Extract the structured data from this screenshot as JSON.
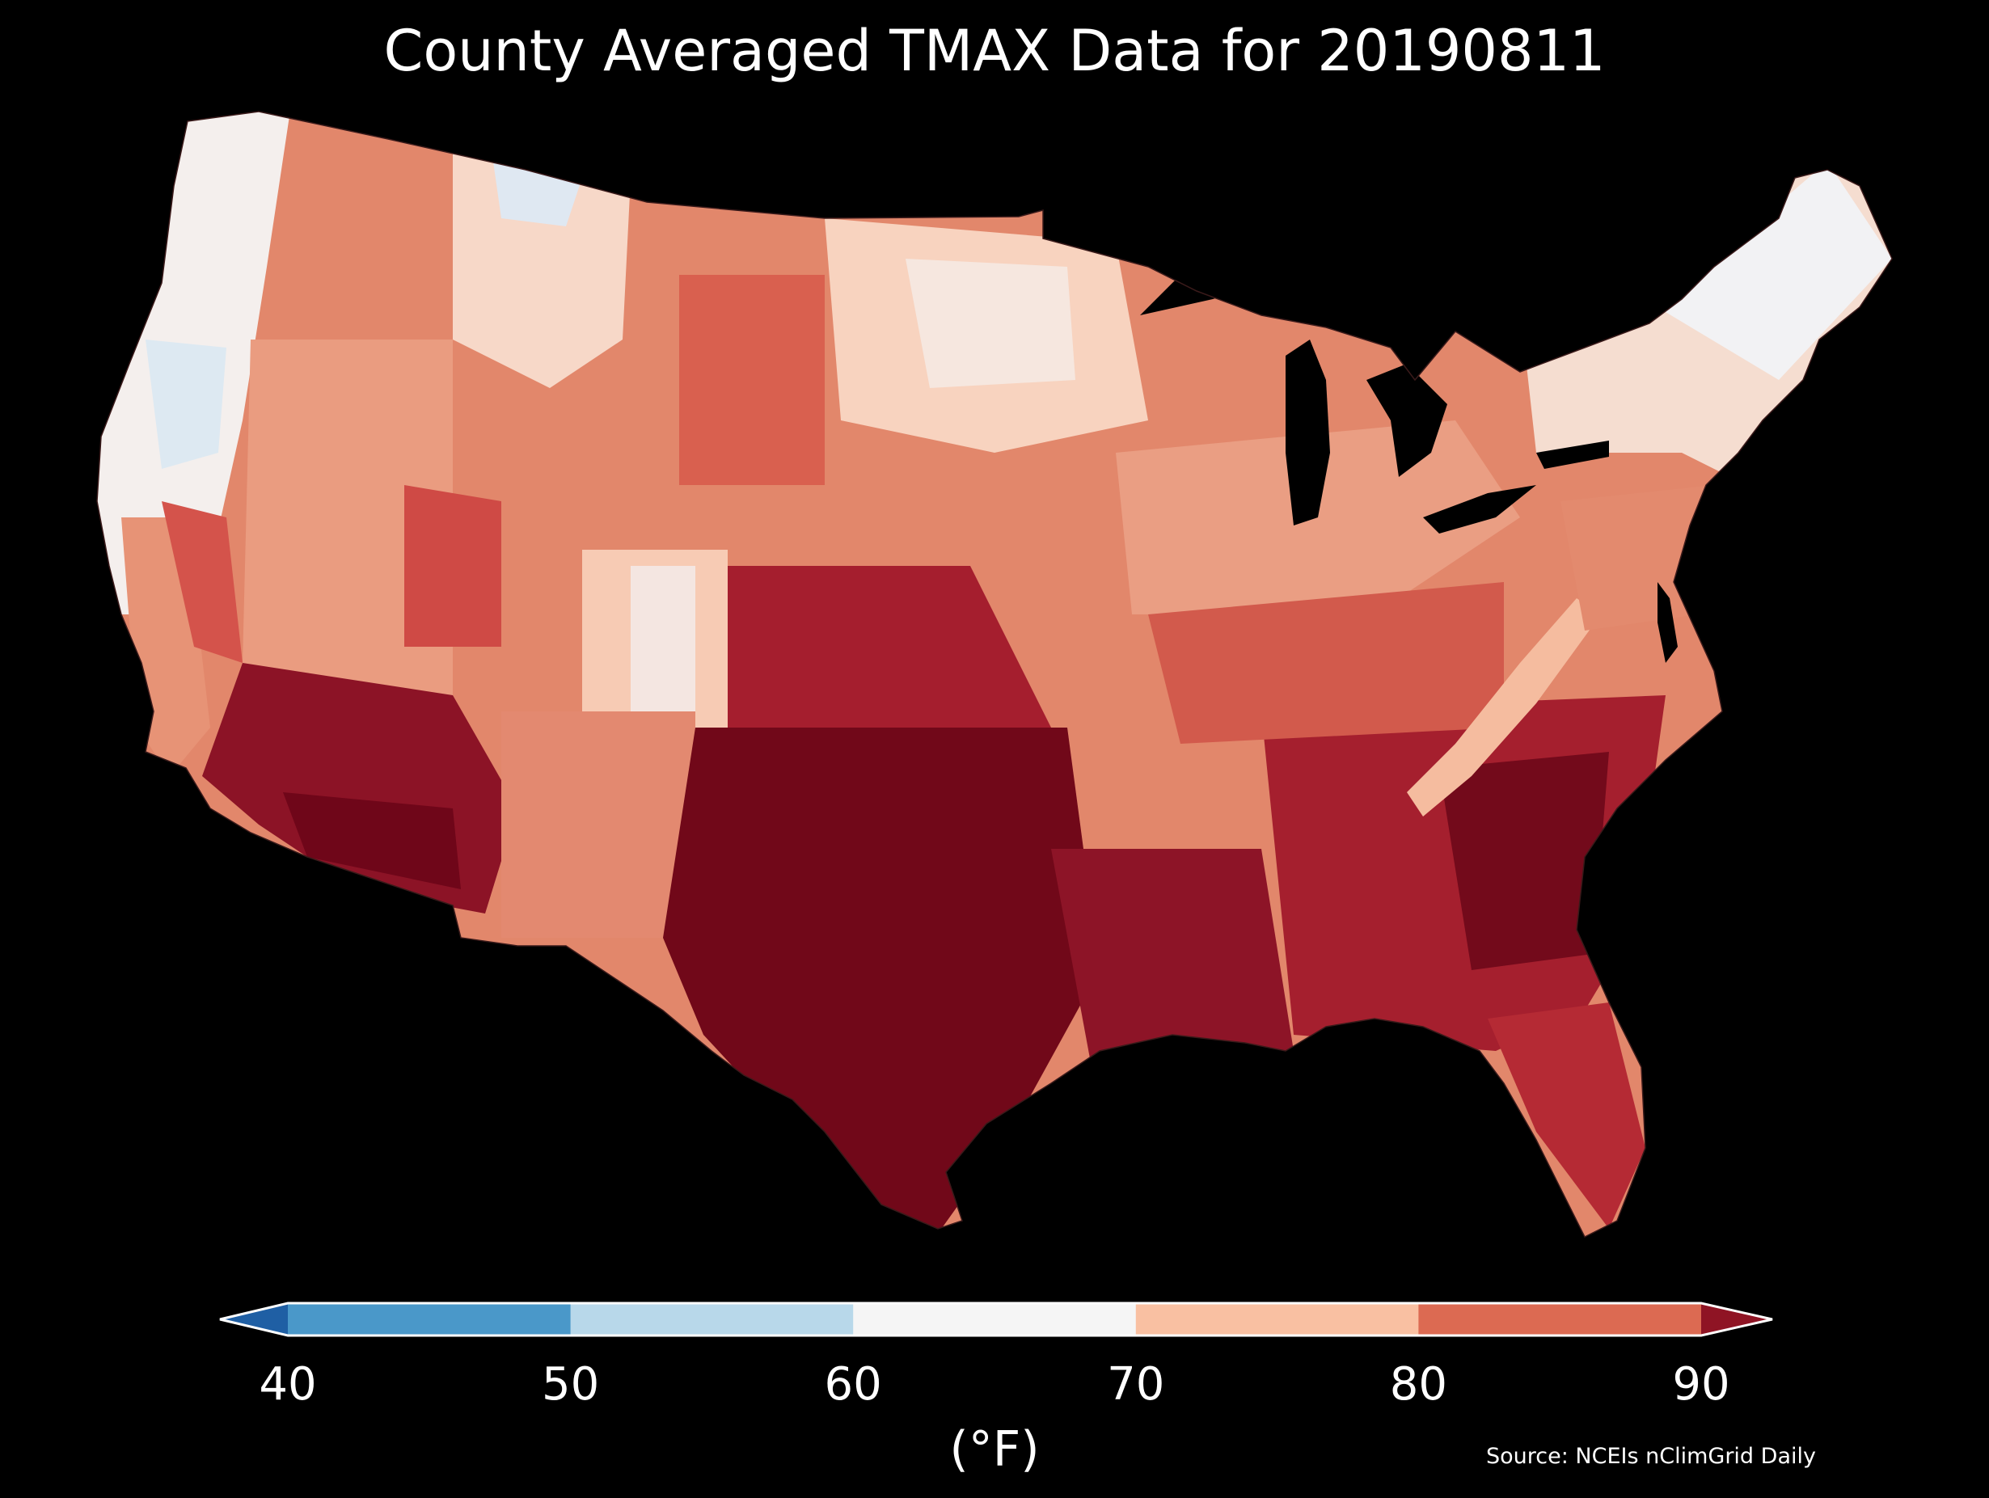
{
  "title": "County Averaged TMAX Data for 20190811",
  "source": "Source: NCEIs nClimGrid Daily",
  "colorbar": {
    "unit_label": "(°F)",
    "ticks": [
      "40",
      "50",
      "60",
      "70",
      "80",
      "90"
    ],
    "bins": [
      {
        "range": "<40",
        "color": "#1f5fa4"
      },
      {
        "range": "40-50",
        "color": "#4a98c9"
      },
      {
        "range": "50-60",
        "color": "#b8d8ea"
      },
      {
        "range": "60-70",
        "color": "#f5f5f5"
      },
      {
        "range": "70-80",
        "color": "#f9c0a2"
      },
      {
        "range": "80-90",
        "color": "#dc6a52"
      },
      {
        "range": ">90",
        "color": "#8f1424"
      }
    ]
  },
  "map": {
    "region": "Contiguous United States counties",
    "palette": {
      "cool": "#f6f6f6",
      "mild": "#f8c3a6",
      "warm": "#e58a6e",
      "hot": "#c43b3b",
      "very_hot": "#9d1a2a",
      "extreme": "#6b0417"
    }
  }
}
